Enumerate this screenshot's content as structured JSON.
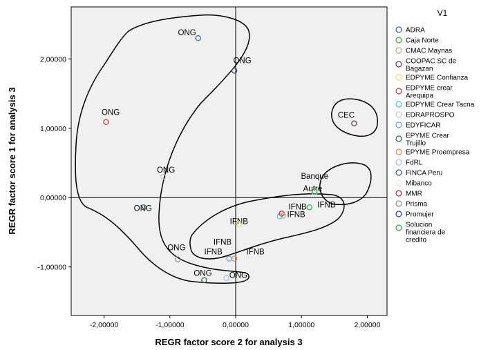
{
  "chart_data": {
    "type": "scatter",
    "xlabel": "REGR factor score   2 for analysis 3",
    "ylabel": "REGR factor score   1 for analysis 3",
    "xlim": [
      -2.5,
      2.3
    ],
    "ylim": [
      -1.7,
      2.75
    ],
    "x_ticks": [
      {
        "value": -2,
        "label": "-2,00000"
      },
      {
        "value": -1,
        "label": "-1,00000"
      },
      {
        "value": 0,
        "label": "0,00000"
      },
      {
        "value": 1,
        "label": "1,00000"
      },
      {
        "value": 2,
        "label": "2,00000"
      }
    ],
    "y_ticks": [
      {
        "value": 2,
        "label": "2,00000"
      },
      {
        "value": 1,
        "label": "1,00000"
      },
      {
        "value": 0,
        "label": "0,00000"
      },
      {
        "value": -1,
        "label": "-1,00000"
      }
    ],
    "reference_lines": {
      "x": 0,
      "y": 0
    },
    "grid": false,
    "legend_position": "right",
    "legend_title": "V1",
    "series": [
      {
        "name": "ADRA",
        "color": "#2e5fb0"
      },
      {
        "name": "Caja Norte",
        "color": "#2bb02b"
      },
      {
        "name": "CMAC Maynas",
        "color": "#c8a878"
      },
      {
        "name": "COOPAC SC de Bagazan",
        "color": "#6b2a6b"
      },
      {
        "name": "EDPYME Confianza",
        "color": "#f0e060"
      },
      {
        "name": "EDPYME crear Arequipa",
        "color": "#e03030"
      },
      {
        "name": "EDPYME Crear Tacna",
        "color": "#40c8d8"
      },
      {
        "name": "EDRAPROSPO",
        "color": "#d8c8c8"
      },
      {
        "name": "EDYFICAR",
        "color": "#5aa0e0"
      },
      {
        "name": "EPYME Crear Trujillo",
        "color": "#1f6b3a"
      },
      {
        "name": "EPYME Proempresa",
        "color": "#f08a30"
      },
      {
        "name": "FdRL",
        "color": "#b8b8e8"
      },
      {
        "name": "FINCA Peru",
        "color": "#2a5a6a"
      },
      {
        "name": "Mibanco",
        "color": "#d8f0d0"
      },
      {
        "name": "MMR",
        "color": "#c82040"
      },
      {
        "name": "Prisma",
        "color": "#909090"
      },
      {
        "name": "Promujer",
        "color": "#2040a0"
      },
      {
        "name": "Solucion financiera de credito",
        "color": "#28a828"
      }
    ],
    "points": [
      {
        "x": -0.57,
        "y": 2.3,
        "series": "ADRA"
      },
      {
        "x": -0.02,
        "y": 1.83,
        "series": "Promujer"
      },
      {
        "x": -1.97,
        "y": 1.09,
        "series": "EDPYME crear Arequipa"
      },
      {
        "x": -1.1,
        "y": 0.3,
        "series": "EDRAPROSPO"
      },
      {
        "x": -1.4,
        "y": -0.14,
        "series": "FINCA Peru"
      },
      {
        "x": -0.88,
        "y": -0.89,
        "series": "Prisma"
      },
      {
        "x": -0.48,
        "y": -1.19,
        "series": "EPYME Crear Trujillo"
      },
      {
        "x": -0.14,
        "y": -1.16,
        "series": "FdRL"
      },
      {
        "x": 0.05,
        "y": -0.38,
        "series": "EDPYME Confianza"
      },
      {
        "x": -0.1,
        "y": -0.88,
        "series": "EDYFICAR"
      },
      {
        "x": -0.02,
        "y": -0.88,
        "series": "EPYME Proempresa"
      },
      {
        "x": 0.67,
        "y": -0.27,
        "series": "EDPYME Crear Tacna"
      },
      {
        "x": 0.7,
        "y": -0.23,
        "series": "MMR"
      },
      {
        "x": 0.72,
        "y": -0.26,
        "series": "CMAC Maynas"
      },
      {
        "x": 1.12,
        "y": -0.14,
        "series": "Caja Norte"
      },
      {
        "x": 1.2,
        "y": 0.07,
        "series": "Mibanco"
      },
      {
        "x": 1.2,
        "y": 0.09,
        "series": "Solucion financiera de credito"
      },
      {
        "x": 1.8,
        "y": 1.07,
        "series": "COOPAC SC de Bagazan"
      }
    ],
    "annotations": [
      {
        "text": "ONG",
        "x": -0.74,
        "y": 2.38
      },
      {
        "text": "ONG",
        "x": 0.1,
        "y": 1.98
      },
      {
        "text": "ONG",
        "x": -1.9,
        "y": 1.23
      },
      {
        "text": "ONG",
        "x": -1.06,
        "y": 0.4
      },
      {
        "text": "ONG",
        "x": -1.41,
        "y": -0.15
      },
      {
        "text": "ONG",
        "x": -0.9,
        "y": -0.72
      },
      {
        "text": "ONG",
        "x": -0.5,
        "y": -1.09
      },
      {
        "text": "ONG",
        "x": 0.04,
        "y": -1.12
      },
      {
        "text": "IFNB",
        "x": 0.05,
        "y": -0.34
      },
      {
        "text": "IFNB",
        "x": -0.2,
        "y": -0.64
      },
      {
        "text": "IFNB",
        "x": -0.34,
        "y": -0.78
      },
      {
        "text": "IFNB",
        "x": 0.3,
        "y": -0.78
      },
      {
        "text": "IFNB",
        "x": 0.94,
        "y": -0.13
      },
      {
        "text": "IFNB",
        "x": 0.92,
        "y": -0.24
      },
      {
        "text": "IFNB",
        "x": 1.38,
        "y": -0.1
      },
      {
        "text": "CEC",
        "x": 1.68,
        "y": 1.19
      },
      {
        "text": "Banque",
        "x": 1.2,
        "y": 0.31
      },
      {
        "text": "Autre",
        "x": 1.17,
        "y": 0.13
      }
    ]
  }
}
